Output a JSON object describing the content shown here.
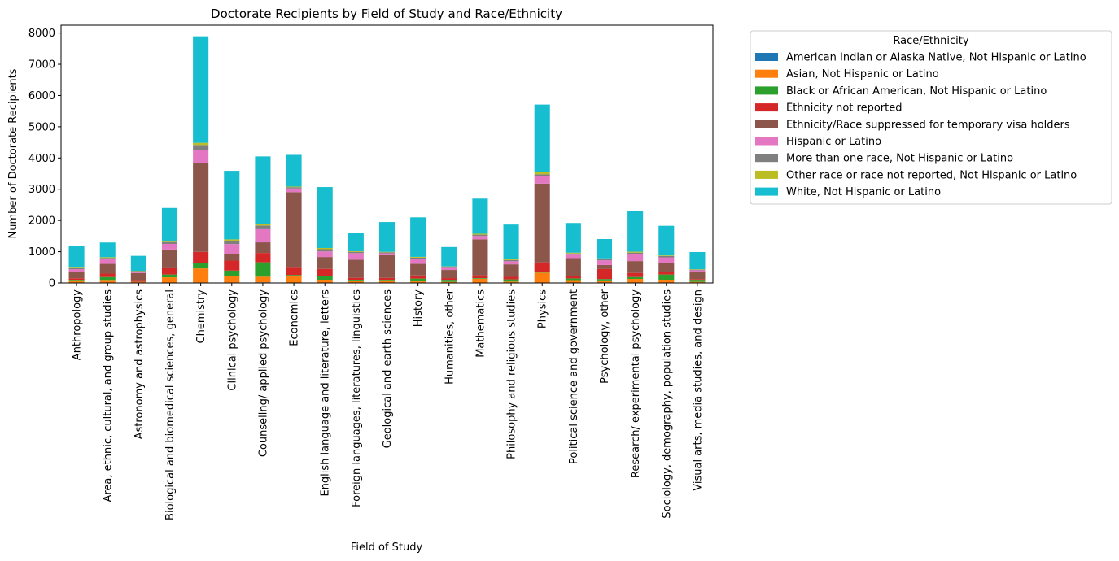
{
  "chart_data": {
    "type": "bar",
    "stacked": true,
    "title": "Doctorate Recipients by Field of Study and Race/Ethnicity",
    "xlabel": "Field of Study",
    "ylabel": "Number of Doctorate Recipients",
    "ylim": [
      0,
      8250
    ],
    "yticks": [
      0,
      1000,
      2000,
      3000,
      4000,
      5000,
      6000,
      7000,
      8000
    ],
    "grid": false,
    "legend": {
      "title": "Race/Ethnicity",
      "placement": "outside-upper-right"
    },
    "categories": [
      "Anthropology",
      "Area, ethnic, cultural, and group studies",
      "Astronomy and astrophysics",
      "Biological and biomedical sciences, general",
      "Chemistry",
      "Clinical psychology",
      "Counseling/ applied psychology",
      "Economics",
      "English language and literature, letters",
      "Foreign languages, literatures, linguistics",
      "Geological and earth sciences",
      "History",
      "Humanities, other",
      "Mathematics",
      "Philosophy and religious studies",
      "Physics",
      "Political science and government",
      "Psychology, other",
      "Research/ experimental psychology",
      "Sociology, demography, population studies",
      "Visual arts, media studies, and design"
    ],
    "series": [
      {
        "name": "American Indian or Alaska Native, Not Hispanic or Latino",
        "color": "#1f77b4",
        "values": [
          10,
          10,
          3,
          10,
          15,
          15,
          20,
          5,
          10,
          5,
          10,
          10,
          5,
          5,
          5,
          10,
          5,
          5,
          10,
          10,
          5
        ]
      },
      {
        "name": "Asian, Not Hispanic or Latino",
        "color": "#ff7f0e",
        "values": [
          50,
          60,
          30,
          170,
          450,
          200,
          180,
          220,
          80,
          50,
          50,
          40,
          30,
          130,
          40,
          320,
          60,
          50,
          120,
          80,
          30
        ]
      },
      {
        "name": "Black or African American, Not Hispanic or Latino",
        "color": "#2ca02c",
        "values": [
          30,
          120,
          5,
          90,
          170,
          180,
          460,
          30,
          130,
          30,
          20,
          90,
          40,
          20,
          70,
          30,
          80,
          70,
          60,
          180,
          40
        ]
      },
      {
        "name": "Ethnicity not reported",
        "color": "#d62728",
        "values": [
          60,
          110,
          30,
          200,
          360,
          320,
          300,
          230,
          230,
          80,
          80,
          100,
          80,
          90,
          80,
          300,
          80,
          320,
          130,
          80,
          50
        ]
      },
      {
        "name": "Ethnicity/Race suppressed for temporary visa holders",
        "color": "#8c564b",
        "values": [
          200,
          310,
          250,
          600,
          2850,
          200,
          340,
          2420,
          380,
          580,
          730,
          370,
          260,
          1150,
          400,
          2520,
          570,
          130,
          380,
          300,
          220
        ]
      },
      {
        "name": "Hispanic or Latino",
        "color": "#e377c2",
        "values": [
          90,
          150,
          40,
          180,
          420,
          330,
          420,
          120,
          180,
          210,
          60,
          150,
          70,
          110,
          100,
          230,
          110,
          150,
          220,
          170,
          60
        ]
      },
      {
        "name": "More than one race, Not Hispanic or Latino",
        "color": "#7f7f7f",
        "values": [
          30,
          40,
          20,
          60,
          150,
          100,
          120,
          40,
          70,
          40,
          30,
          50,
          30,
          40,
          40,
          70,
          40,
          40,
          50,
          40,
          20
        ]
      },
      {
        "name": "Other race or race not reported, Not Hispanic or Latino",
        "color": "#bcbd22",
        "values": [
          20,
          25,
          10,
          40,
          70,
          50,
          60,
          20,
          40,
          20,
          15,
          25,
          15,
          30,
          25,
          60,
          25,
          20,
          30,
          20,
          15
        ]
      },
      {
        "name": "White, Not Hispanic or Latino",
        "color": "#17becf",
        "values": [
          690,
          470,
          480,
          1050,
          3410,
          2195,
          2150,
          1015,
          1950,
          575,
          955,
          1265,
          620,
          1125,
          1110,
          2170,
          950,
          620,
          1300,
          950,
          550
        ]
      }
    ]
  }
}
